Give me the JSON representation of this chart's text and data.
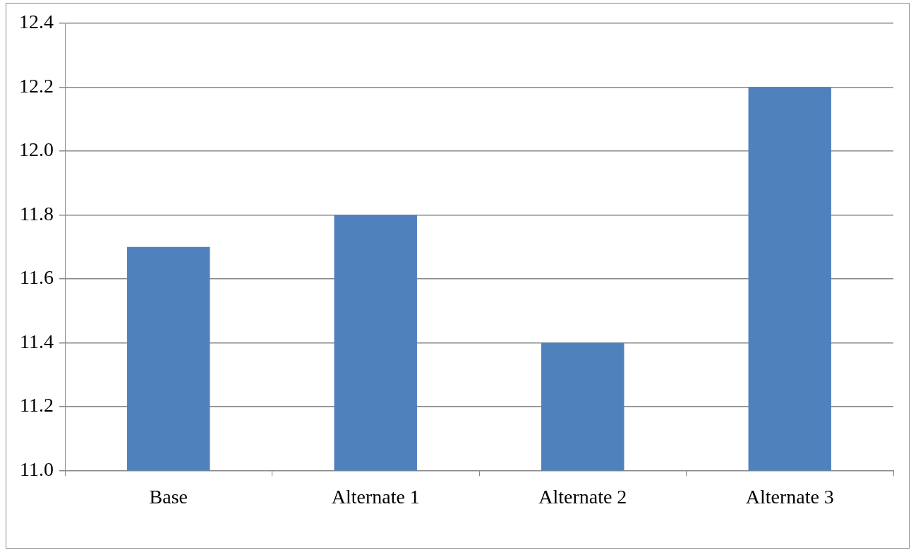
{
  "chart_data": {
    "type": "bar",
    "categories": [
      "Base",
      "Alternate 1",
      "Alternate 2",
      "Alternate 3"
    ],
    "values": [
      11.7,
      11.8,
      11.4,
      12.2
    ],
    "color": "#4f81bd",
    "ylim": [
      11.0,
      12.4
    ],
    "yticks": [
      {
        "value": 11.0,
        "label": "11.0"
      },
      {
        "value": 11.2,
        "label": "11.2"
      },
      {
        "value": 11.4,
        "label": "11.4"
      },
      {
        "value": 11.6,
        "label": "11.6"
      },
      {
        "value": 11.8,
        "label": "11.8"
      },
      {
        "value": 12.0,
        "label": "12.0"
      },
      {
        "value": 12.2,
        "label": "12.2"
      },
      {
        "value": 12.4,
        "label": "12.4"
      }
    ],
    "grid": "y"
  }
}
